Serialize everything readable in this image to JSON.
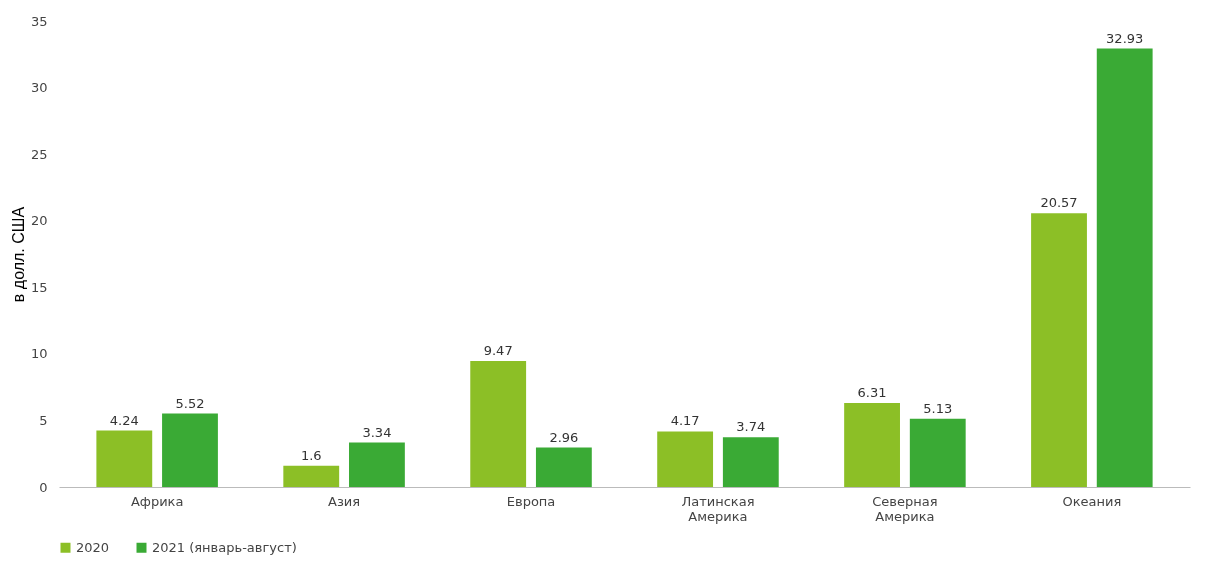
{
  "chart_data": {
    "type": "bar",
    "ylabel": "в долл. США",
    "categories": [
      "Африка",
      "Азия",
      "Европа",
      "Латинская Америка",
      "Северная Америка",
      "Океания"
    ],
    "series": [
      {
        "name": "2020",
        "color": "#8cbf26",
        "values": [
          4.24,
          1.6,
          9.47,
          4.17,
          6.31,
          20.57
        ]
      },
      {
        "name": "2021 (январь-август)",
        "color": "#3aaa35",
        "values": [
          5.52,
          3.34,
          2.96,
          3.74,
          5.13,
          32.93
        ]
      }
    ],
    "ylim": [
      0,
      35
    ],
    "yticks": [
      0,
      5,
      10,
      15,
      20,
      25,
      30,
      35
    ],
    "grid": false,
    "legend": "bottom",
    "data_labels": true
  }
}
